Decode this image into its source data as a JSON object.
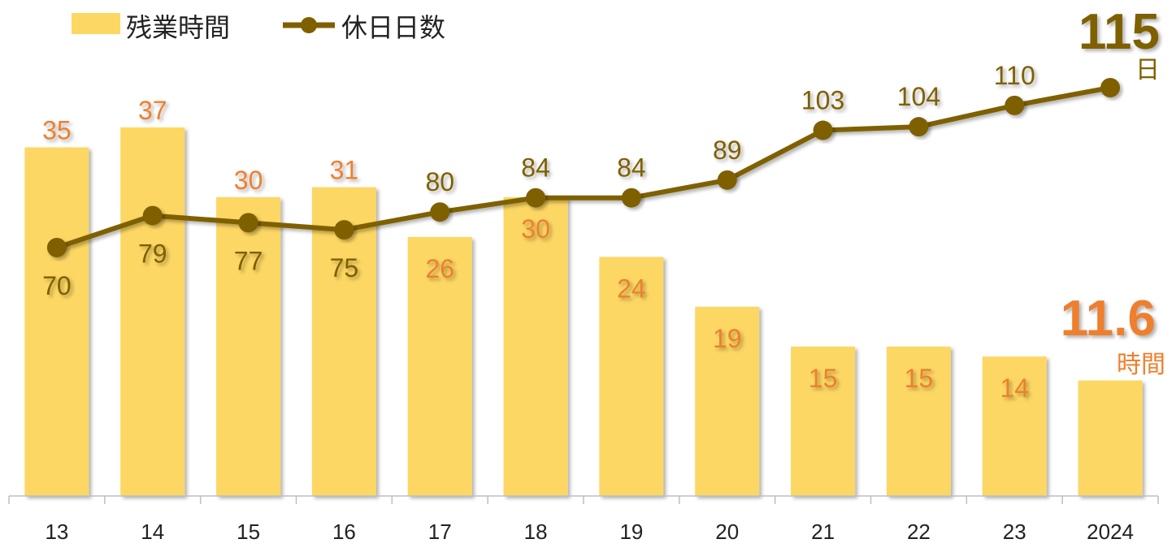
{
  "chart_data": {
    "type": "bar",
    "categories": [
      "13",
      "14",
      "15",
      "16",
      "17",
      "18",
      "19",
      "20",
      "21",
      "22",
      "23",
      "2024"
    ],
    "series": [
      {
        "name": "残業時間",
        "type": "bar",
        "values": [
          35,
          37,
          30,
          31,
          26,
          30,
          24,
          19,
          15,
          15,
          14,
          11.6
        ],
        "labels": [
          "35",
          "37",
          "30",
          "31",
          "26",
          "30",
          "24",
          "19",
          "15",
          "15",
          "14",
          ""
        ],
        "color": "#FDD764",
        "label_color": "#EE7F2D"
      },
      {
        "name": "休日日数",
        "type": "line",
        "values": [
          70,
          79,
          77,
          75,
          80,
          84,
          84,
          89,
          103,
          104,
          110,
          115
        ],
        "labels": [
          "70",
          "79",
          "77",
          "75",
          "80",
          "84",
          "84",
          "89",
          "103",
          "104",
          "110",
          ""
        ],
        "color": "#7F6000"
      }
    ],
    "highlight": {
      "holidays_value": "115",
      "holidays_unit": "日",
      "overtime_value": "11.6",
      "overtime_unit": "時間"
    },
    "bar_axis_range": [
      0,
      37
    ],
    "line_axis_range": [
      56.3,
      118.5
    ],
    "legend_position": "top-left",
    "grid": false
  }
}
